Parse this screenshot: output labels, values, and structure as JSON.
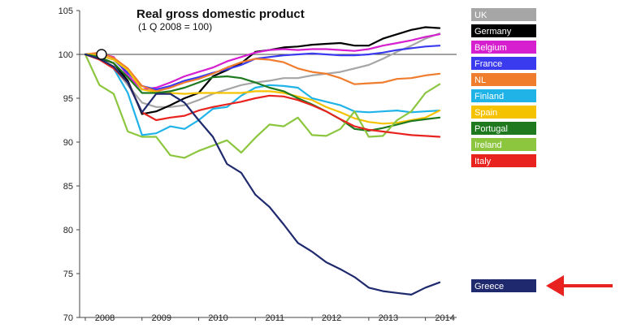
{
  "chart_data": {
    "type": "line",
    "title": "Real gross domestic product",
    "subtitle": "(1 Q 2008 = 100)",
    "xlabel": "",
    "ylabel": "",
    "x": [
      2008.0,
      2008.25,
      2008.5,
      2008.75,
      2009.0,
      2009.25,
      2009.5,
      2009.75,
      2010.0,
      2010.25,
      2010.5,
      2010.75,
      2011.0,
      2011.25,
      2011.5,
      2011.75,
      2012.0,
      2012.25,
      2012.5,
      2012.75,
      2013.0,
      2013.25,
      2013.5,
      2013.75,
      2014.0,
      2014.25
    ],
    "xticks": [
      "2008",
      "2009",
      "2010",
      "2011",
      "2012",
      "2013",
      "2014"
    ],
    "xtick_values": [
      2008,
      2009,
      2010,
      2011,
      2012,
      2013,
      2014
    ],
    "ylim": [
      70,
      105
    ],
    "yticks": [
      70,
      75,
      80,
      85,
      90,
      95,
      100,
      105
    ],
    "reference_line": 100,
    "grid": false,
    "legend_placement": "right",
    "series": [
      {
        "name": "UK",
        "color": "#a6a6a6",
        "values": [
          100,
          99.5,
          98.5,
          96.5,
          94.5,
          94.0,
          94.0,
          94.2,
          94.8,
          95.5,
          96.0,
          96.5,
          96.8,
          97.0,
          97.3,
          97.3,
          97.6,
          97.8,
          98.0,
          98.4,
          98.8,
          99.5,
          100.3,
          101.0,
          101.8,
          102.4
        ]
      },
      {
        "name": "Germany",
        "color": "#000000",
        "values": [
          100,
          99.6,
          99.0,
          97.0,
          93.2,
          93.5,
          94.2,
          95.0,
          95.6,
          97.5,
          98.2,
          99.0,
          100.3,
          100.5,
          100.8,
          100.9,
          101.1,
          101.2,
          101.3,
          101.0,
          101.0,
          101.8,
          102.3,
          102.8,
          103.1,
          103.0
        ]
      },
      {
        "name": "Belgium",
        "color": "#d61fcf",
        "values": [
          100,
          100.1,
          99.7,
          97.6,
          96.0,
          96.2,
          96.8,
          97.5,
          98.0,
          98.5,
          99.2,
          99.7,
          100.2,
          100.5,
          100.6,
          100.5,
          100.6,
          100.6,
          100.5,
          100.4,
          100.6,
          101.0,
          101.3,
          101.6,
          102.0,
          102.3
        ]
      },
      {
        "name": "France",
        "color": "#3a3aef",
        "values": [
          100,
          99.9,
          99.4,
          97.9,
          96.4,
          96.0,
          96.4,
          97.0,
          97.4,
          97.9,
          98.3,
          98.8,
          99.5,
          99.7,
          99.9,
          100.0,
          100.1,
          100.0,
          99.9,
          99.9,
          100.0,
          100.2,
          100.5,
          100.7,
          100.9,
          101.0
        ]
      },
      {
        "name": "NL",
        "color": "#f07c2e",
        "values": [
          100,
          100.2,
          99.6,
          98.4,
          96.4,
          95.8,
          96.2,
          96.8,
          97.2,
          97.8,
          98.5,
          99.1,
          99.5,
          99.4,
          99.1,
          98.4,
          98.0,
          97.8,
          97.3,
          96.6,
          96.7,
          96.8,
          97.2,
          97.3,
          97.6,
          97.8
        ]
      },
      {
        "name": "Finland",
        "color": "#1fb3e8",
        "values": [
          100,
          99.6,
          98.4,
          95.6,
          90.8,
          91.0,
          91.8,
          91.5,
          92.5,
          93.8,
          94.0,
          95.3,
          96.2,
          96.5,
          96.4,
          96.2,
          95.0,
          94.6,
          94.2,
          93.5,
          93.4,
          93.5,
          93.6,
          93.4,
          93.5,
          93.6
        ]
      },
      {
        "name": "Spain",
        "color": "#f5c200",
        "values": [
          100,
          99.9,
          99.4,
          98.2,
          96.0,
          95.7,
          95.6,
          95.5,
          95.6,
          95.6,
          95.6,
          95.6,
          95.8,
          95.8,
          95.6,
          95.2,
          94.8,
          94.0,
          93.4,
          92.7,
          92.3,
          92.1,
          92.2,
          92.5,
          92.8,
          93.6
        ]
      },
      {
        "name": "Portugal",
        "color": "#1f7a1f",
        "values": [
          100,
          99.7,
          99.0,
          97.4,
          95.6,
          95.6,
          95.8,
          96.2,
          96.8,
          97.4,
          97.5,
          97.3,
          96.8,
          96.2,
          95.8,
          95.0,
          94.3,
          93.5,
          92.6,
          91.5,
          91.3,
          91.6,
          92.0,
          92.4,
          92.6,
          92.8
        ]
      },
      {
        "name": "Ireland",
        "color": "#8cc63f",
        "values": [
          100,
          96.5,
          95.5,
          91.2,
          90.6,
          90.6,
          88.5,
          88.2,
          89.0,
          89.6,
          90.2,
          88.8,
          90.5,
          92.0,
          91.8,
          92.8,
          90.8,
          90.7,
          91.5,
          93.5,
          90.6,
          90.7,
          92.5,
          93.5,
          95.6,
          96.6
        ]
      },
      {
        "name": "Italy",
        "color": "#e8231f",
        "values": [
          100,
          99.4,
          98.4,
          96.8,
          93.4,
          92.5,
          92.8,
          93.0,
          93.6,
          94.0,
          94.3,
          94.6,
          95.0,
          95.3,
          95.2,
          94.8,
          94.2,
          93.5,
          92.6,
          91.8,
          91.4,
          91.2,
          91.0,
          90.8,
          90.7,
          90.6
        ]
      },
      {
        "name": "Greece",
        "color": "#1f2a6e",
        "values": [
          100,
          99.5,
          98.6,
          96.8,
          93.4,
          95.5,
          95.5,
          94.5,
          92.5,
          90.6,
          87.5,
          86.5,
          84.0,
          82.6,
          80.6,
          78.5,
          77.5,
          76.3,
          75.5,
          74.6,
          73.4,
          73.0,
          72.8,
          72.6,
          73.4,
          74.0
        ]
      }
    ]
  },
  "colors": {
    "axis": "#444444",
    "reference_line": "#444444",
    "annotation_arrow": "#e8231f"
  },
  "annotation": {
    "arrow_target": "Greece"
  }
}
